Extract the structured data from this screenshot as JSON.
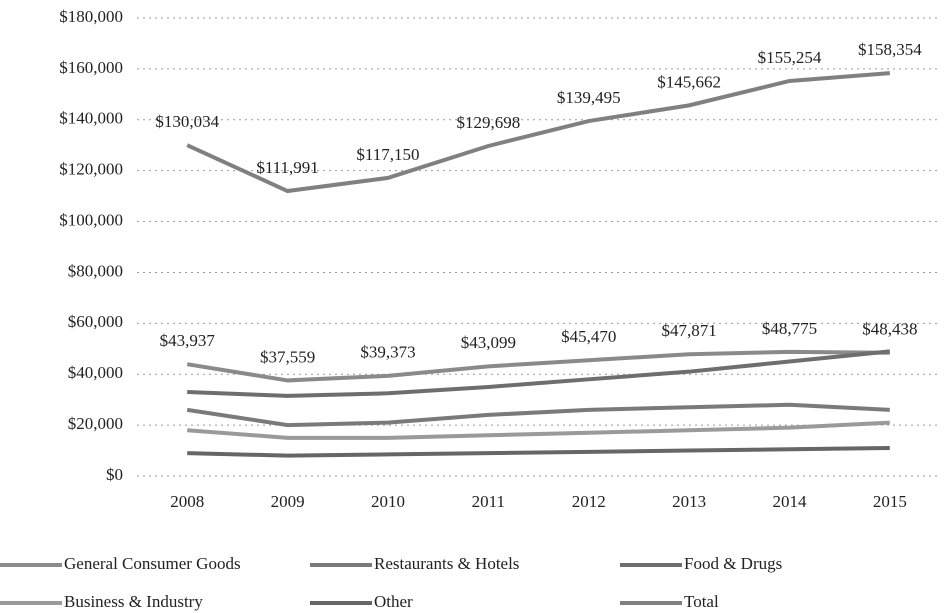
{
  "chart_data": {
    "type": "line",
    "categories": [
      "2008",
      "2009",
      "2010",
      "2011",
      "2012",
      "2013",
      "2014",
      "2015"
    ],
    "series": [
      {
        "name": "General Consumer Goods",
        "color": "#8a8a8a",
        "values": [
          43937,
          37559,
          39373,
          43099,
          45470,
          47871,
          48775,
          48438
        ],
        "value_labels": [
          "$43,937",
          "$37,559",
          "$39,373",
          "$43,099",
          "$45,470",
          "$47,871",
          "$48,775",
          "$48,438"
        ]
      },
      {
        "name": "Restaurants & Hotels",
        "color": "#7a7a7a",
        "values": [
          26000,
          20000,
          21000,
          24000,
          26000,
          27000,
          28000,
          26000
        ]
      },
      {
        "name": "Food & Drugs",
        "color": "#6e6e6e",
        "values": [
          33000,
          31500,
          32500,
          35000,
          38000,
          41000,
          45000,
          49000
        ]
      },
      {
        "name": "Business & Industry",
        "color": "#9a9a9a",
        "values": [
          18000,
          15000,
          15000,
          16000,
          17000,
          18000,
          19000,
          21000
        ]
      },
      {
        "name": "Other",
        "color": "#666666",
        "values": [
          9000,
          8000,
          8500,
          9000,
          9500,
          10000,
          10500,
          11000
        ]
      },
      {
        "name": "Total",
        "color": "#808080",
        "values": [
          130034,
          111991,
          117150,
          129698,
          139495,
          145662,
          155254,
          158354
        ],
        "value_labels": [
          "$130,034",
          "$111,991",
          "$117,150",
          "$129,698",
          "$139,495",
          "$145,662",
          "$155,254",
          "$158,354"
        ]
      }
    ],
    "ylim": [
      0,
      180000
    ],
    "yticks": [
      {
        "value": 0,
        "label": "$0"
      },
      {
        "value": 20000,
        "label": "$20,000"
      },
      {
        "value": 40000,
        "label": "$40,000"
      },
      {
        "value": 60000,
        "label": "$60,000"
      },
      {
        "value": 80000,
        "label": "$80,000"
      },
      {
        "value": 100000,
        "label": "$100,000"
      },
      {
        "value": 120000,
        "label": "$120,000"
      },
      {
        "value": 140000,
        "label": "$140,000"
      },
      {
        "value": 160000,
        "label": "$160,000"
      },
      {
        "value": 180000,
        "label": "$180,000"
      }
    ],
    "grid": true
  }
}
